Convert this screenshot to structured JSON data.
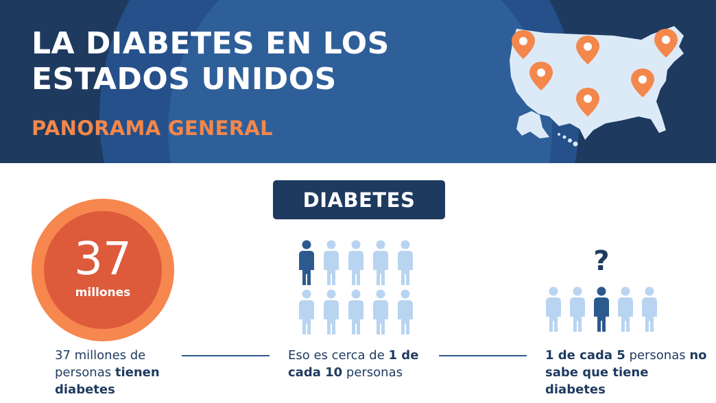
{
  "header": {
    "title_line1": "LA DIABETES EN LOS",
    "title_line2": "ESTADOS UNIDOS",
    "subtitle": "PANORAMA GENERAL"
  },
  "section": {
    "label": "DIABETES"
  },
  "stat": {
    "number": "37",
    "unit": "millones"
  },
  "captions": {
    "first": {
      "part1": "37 millones de personas ",
      "bold": "tienen diabetes"
    },
    "second": {
      "part1": "Eso es cerca de ",
      "bold1": "1 de cada 10",
      "part2": " personas"
    },
    "third": {
      "bold1": "1 de cada 5",
      "part1": " personas ",
      "bold2": "no sabe que tiene diabetes"
    }
  },
  "pictograms": {
    "group_a": {
      "total": 10,
      "highlighted": 1
    },
    "group_b": {
      "total": 5,
      "highlighted": 1,
      "question_mark": "?"
    }
  },
  "colors": {
    "navy": "#1e3a5f",
    "orange": "#f6874f",
    "red_orange": "#dd5a3a",
    "person_light": "#b8d4f0",
    "person_dark": "#2c5a8e",
    "map_fill": "#dceaf8",
    "pin": "#f4874b"
  },
  "icons": [
    "map-pin-icon",
    "person-icon",
    "question-mark-icon",
    "usa-map-icon"
  ]
}
